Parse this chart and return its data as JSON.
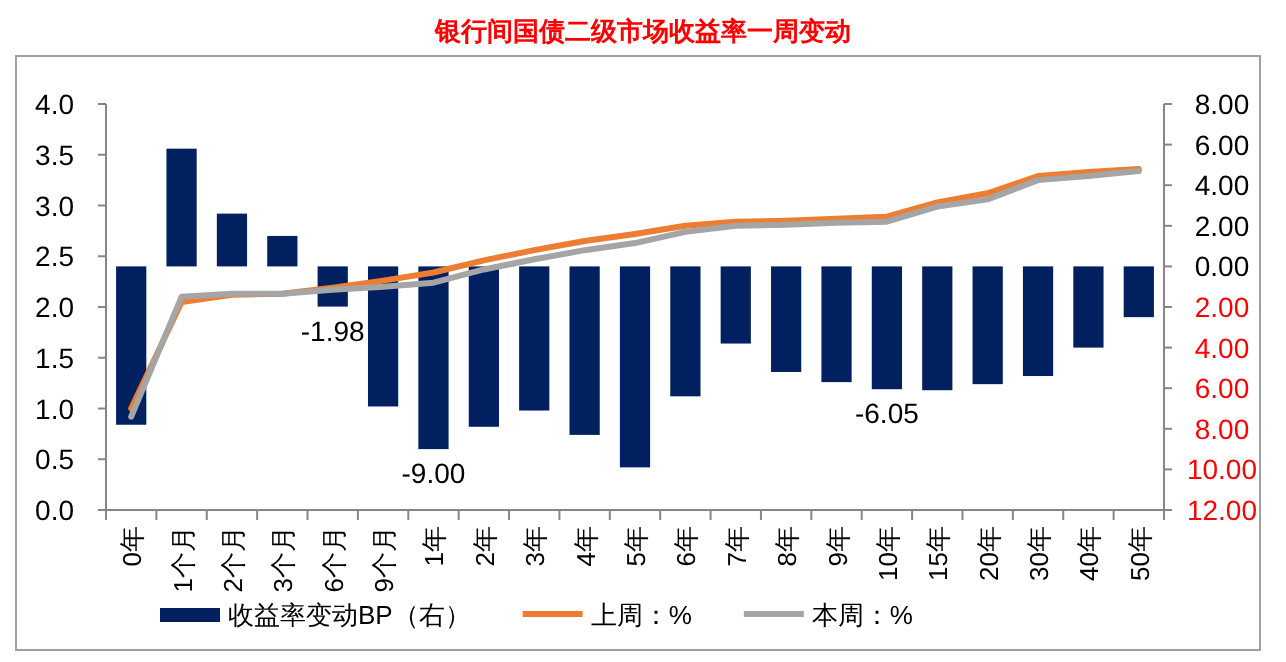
{
  "chart_data": {
    "type": "bar",
    "title": "银行间国债二级市场收益率一周变动",
    "categories": [
      "0年",
      "1个月",
      "2个月",
      "3个月",
      "6个月",
      "9个月",
      "1年",
      "2年",
      "3年",
      "4年",
      "5年",
      "6年",
      "7年",
      "8年",
      "9年",
      "10年",
      "15年",
      "20年",
      "30年",
      "40年",
      "50年"
    ],
    "series": [
      {
        "name": "收益率变动BP（右）",
        "axis": "y2",
        "color": "#002060",
        "values": [
          -7.8,
          5.8,
          2.6,
          1.5,
          -1.98,
          -6.9,
          -9.0,
          -7.9,
          -7.1,
          -8.3,
          -9.9,
          -6.4,
          -3.8,
          -5.2,
          -5.7,
          -6.05,
          -6.1,
          -5.8,
          -5.4,
          -4.0,
          -2.5
        ],
        "value_labels": [
          null,
          null,
          null,
          null,
          "-1.98",
          null,
          "-9.00",
          null,
          null,
          null,
          null,
          null,
          null,
          null,
          null,
          "-6.05",
          null,
          null,
          null,
          null,
          null
        ]
      },
      {
        "name": "上周：%",
        "type": "line",
        "color": "#ED7D31",
        "values": [
          1.0,
          2.05,
          2.12,
          2.13,
          2.19,
          2.26,
          2.34,
          2.46,
          2.56,
          2.65,
          2.72,
          2.8,
          2.84,
          2.85,
          2.87,
          2.89,
          3.03,
          3.12,
          3.29,
          3.33,
          3.36
        ]
      },
      {
        "name": "本周：%",
        "type": "line",
        "color": "#A5A5A5",
        "values": [
          0.92,
          2.1,
          2.13,
          2.13,
          2.17,
          2.2,
          2.24,
          2.37,
          2.47,
          2.56,
          2.63,
          2.74,
          2.8,
          2.81,
          2.83,
          2.84,
          2.99,
          3.06,
          3.25,
          3.29,
          3.34
        ]
      }
    ],
    "ylim": [
      0,
      4
    ],
    "yticks": [
      {
        "value": 0,
        "label": "0.0"
      },
      {
        "value": 0.5,
        "label": "0.5"
      },
      {
        "value": 1,
        "label": "1.0"
      },
      {
        "value": 1.5,
        "label": "1.5"
      },
      {
        "value": 2,
        "label": "2.0"
      },
      {
        "value": 2.5,
        "label": "2.5"
      },
      {
        "value": 3,
        "label": "3.0"
      },
      {
        "value": 3.5,
        "label": "3.5"
      },
      {
        "value": 4,
        "label": "4.0"
      }
    ],
    "y2lim": [
      -12,
      8
    ],
    "y2ticks": [
      {
        "value": 8,
        "label": "8.00"
      },
      {
        "value": 6,
        "label": "6.00"
      },
      {
        "value": 4,
        "label": "4.00"
      },
      {
        "value": 2,
        "label": "2.00"
      },
      {
        "value": 0,
        "label": "0.00"
      },
      {
        "value": -2,
        "label": "2.00"
      },
      {
        "value": -4,
        "label": "4.00"
      },
      {
        "value": -6,
        "label": "6.00"
      },
      {
        "value": -8,
        "label": "8.00"
      },
      {
        "value": -10,
        "label": "10.00"
      },
      {
        "value": -12,
        "label": "12.00"
      }
    ],
    "legend": "bottom"
  }
}
